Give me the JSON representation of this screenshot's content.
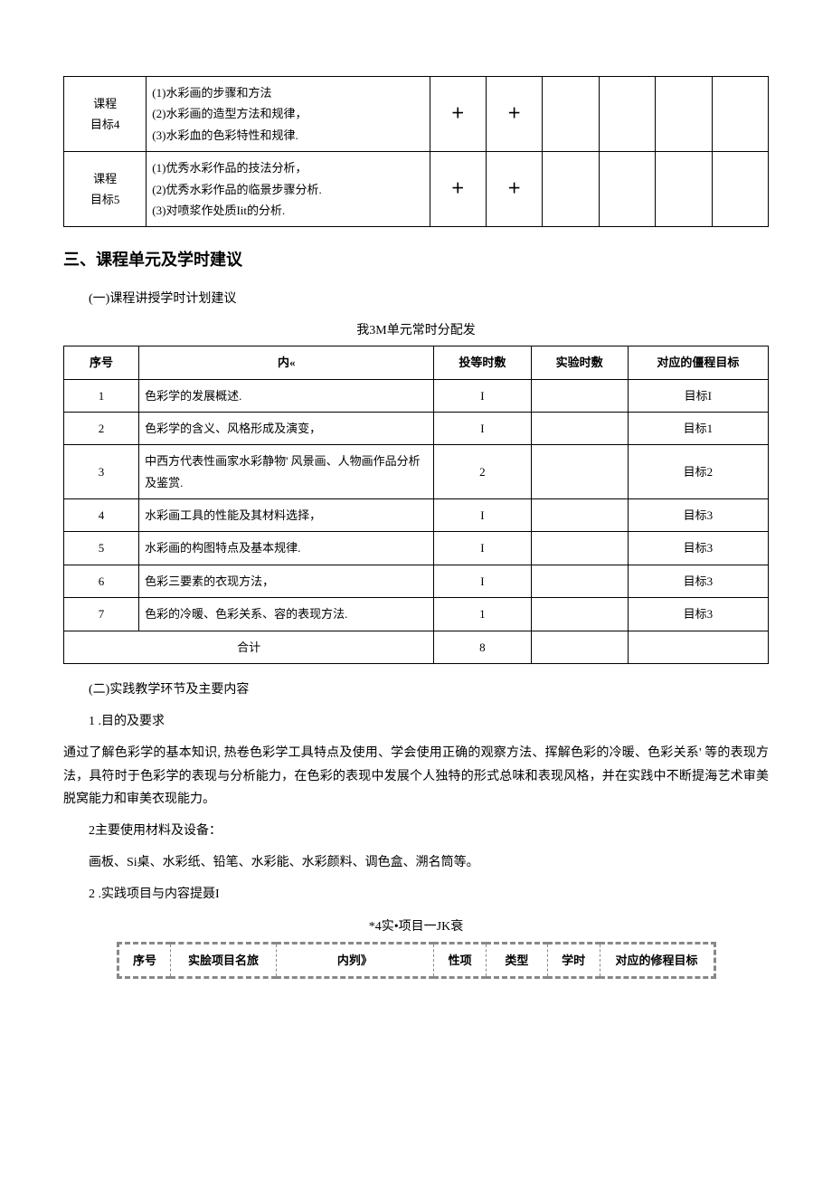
{
  "table1": {
    "rows": [
      {
        "label": "课程\n目标4",
        "lines": [
          "(1)水彩画的步骤和方法",
          "(2)水彩画的造型方法和规律，",
          "(3)水彩血的色彩特性和规律."
        ],
        "marks": [
          "＋",
          "＋",
          "",
          "",
          "",
          ""
        ]
      },
      {
        "label": "课程\n目标5",
        "lines": [
          "(1)优秀水彩作品的技法分析，",
          "(2)优秀水彩作品的临景步骤分析.",
          "(3)对喷浆作处质Iit的分析."
        ],
        "marks": [
          "＋",
          "＋",
          "",
          "",
          "",
          ""
        ]
      }
    ]
  },
  "section3_title": "三、课程单元及学时建议",
  "sub1": "(一)课程讲授学时计划建议",
  "caption1": "我3M单元常时分配发",
  "table2": {
    "headers": [
      "序号",
      "内«",
      "投等时敷",
      "实验时敷",
      "对应的僵程目标"
    ],
    "rows": [
      {
        "n": "1",
        "content": "色彩学的发展概述.",
        "h1": "I",
        "h2": "",
        "t": "目标I"
      },
      {
        "n": "2",
        "content": "色彩学的含义、风格形成及演变，",
        "h1": "I",
        "h2": "",
        "t": "目标1"
      },
      {
        "n": "3",
        "content": "中西方代表性画家水彩静物' 风景画、人物画作品分析及鉴赏.",
        "h1": "2",
        "h2": "",
        "t": "目标2"
      },
      {
        "n": "4",
        "content": "水彩画工具的性能及其材料选择，",
        "h1": "I",
        "h2": "",
        "t": "目标3"
      },
      {
        "n": "5",
        "content": "水彩画的构图特点及基本规律.",
        "h1": "I",
        "h2": "",
        "t": "目标3"
      },
      {
        "n": "6",
        "content": "色彩三要素的衣现方法，",
        "h1": "I",
        "h2": "",
        "t": "目标3"
      },
      {
        "n": "7",
        "content": "色彩的冷暖、色彩关系、容的表现方法.",
        "h1": "1",
        "h2": "",
        "t": "目标3"
      }
    ],
    "total_label": "合计",
    "total_h1": "8"
  },
  "sub2": "(二)实践教学环节及主要内容",
  "p1_label": "1 .目的及要求",
  "p1_body": "通过了解色彩学的基本知识, 热卷色彩学工具特点及使用、学会使用正确的观察方法、挥解色彩的冷暖、色彩关系' 等的表现方法，具符时于色彩学的表现与分析能力，在色彩的表现中发展个人独特的形式总味和表现风格，并在实践中不断提海艺术审美脱窝能力和审美衣现能力。",
  "p2_label": "2主要使用材料及设备：",
  "p2_body": "画板、Si桌、水彩纸、铅笔、水彩能、水彩颜料、调色盒、溯名筒等。",
  "p3_label": "2 .实践项目与内容提聂I",
  "caption2": "*4实•项目一JK衰",
  "table3": {
    "headers": [
      "序号",
      "实脍项目名旅",
      "内刿》",
      "性项",
      "类型",
      "学时",
      "对应的修程目标"
    ]
  }
}
